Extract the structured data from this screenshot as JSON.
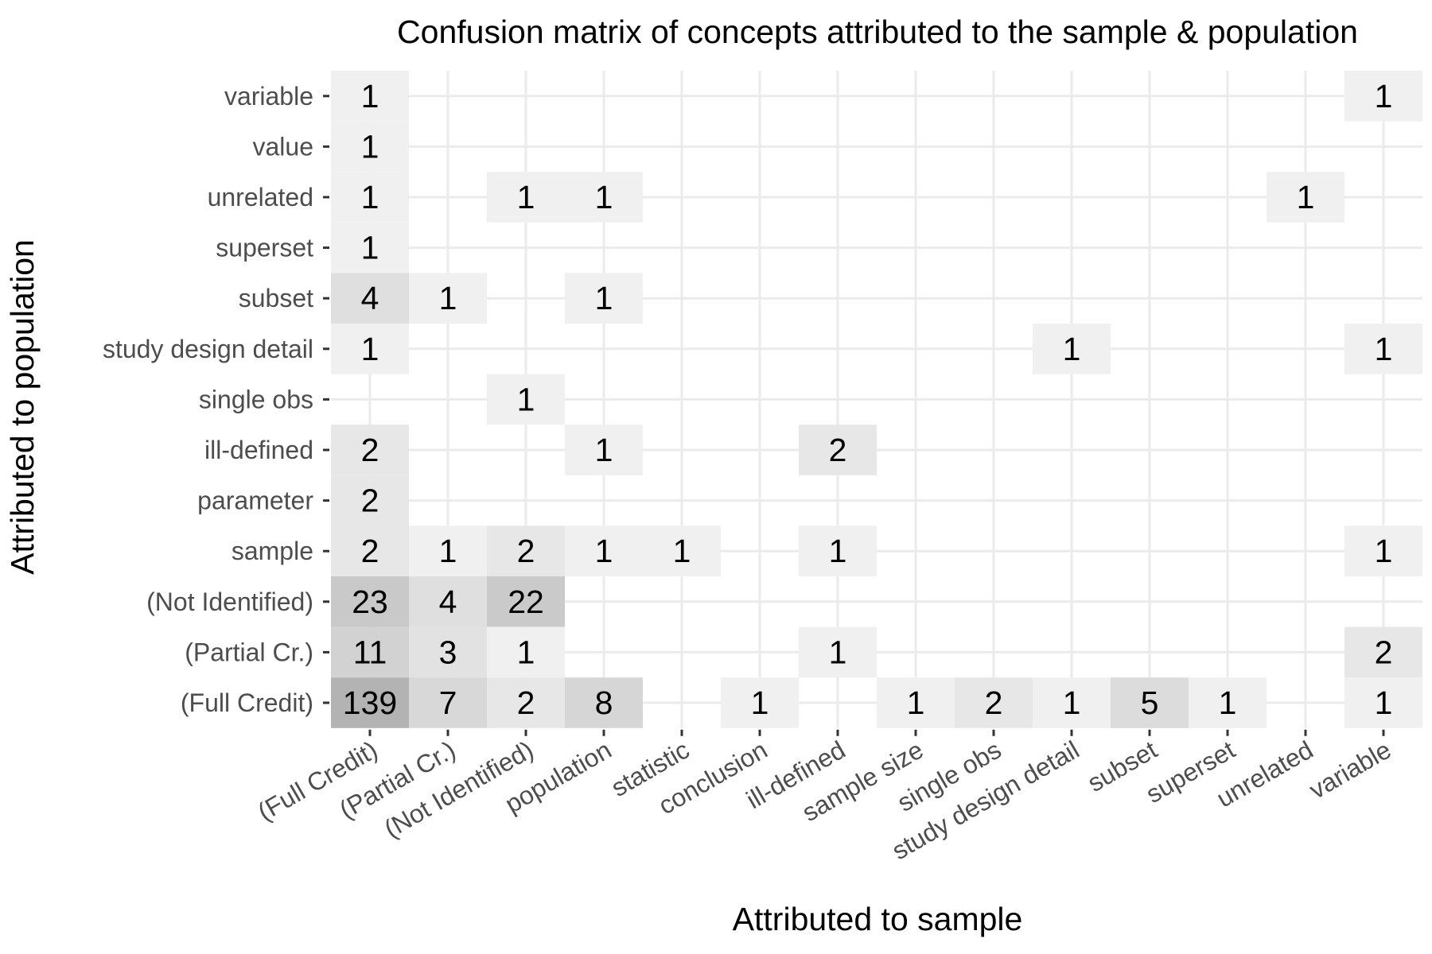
{
  "chart_data": {
    "type": "heatmap",
    "title": "Confusion matrix of concepts attributed to the sample & population",
    "xlabel": "Attributed to sample",
    "ylabel": "Attributed to population",
    "x_categories": [
      "(Full Credit)",
      "(Partial Cr.)",
      "(Not Identified)",
      "population",
      "statistic",
      "conclusion",
      "ill-defined",
      "sample size",
      "single obs",
      "study design detail",
      "subset",
      "superset",
      "unrelated",
      "variable"
    ],
    "y_categories": [
      "(Full Credit)",
      "(Partial Cr.)",
      "(Not Identified)",
      "sample",
      "parameter",
      "ill-defined",
      "single obs",
      "study design detail",
      "subset",
      "superset",
      "unrelated",
      "value",
      "variable"
    ],
    "cells": [
      {
        "x": "(Full Credit)",
        "y": "variable",
        "value": 1
      },
      {
        "x": "variable",
        "y": "variable",
        "value": 1
      },
      {
        "x": "(Full Credit)",
        "y": "value",
        "value": 1
      },
      {
        "x": "(Full Credit)",
        "y": "unrelated",
        "value": 1
      },
      {
        "x": "(Not Identified)",
        "y": "unrelated",
        "value": 1
      },
      {
        "x": "population",
        "y": "unrelated",
        "value": 1
      },
      {
        "x": "unrelated",
        "y": "unrelated",
        "value": 1
      },
      {
        "x": "(Full Credit)",
        "y": "superset",
        "value": 1
      },
      {
        "x": "(Full Credit)",
        "y": "subset",
        "value": 4
      },
      {
        "x": "(Partial Cr.)",
        "y": "subset",
        "value": 1
      },
      {
        "x": "population",
        "y": "subset",
        "value": 1
      },
      {
        "x": "(Full Credit)",
        "y": "study design detail",
        "value": 1
      },
      {
        "x": "study design detail",
        "y": "study design detail",
        "value": 1
      },
      {
        "x": "variable",
        "y": "study design detail",
        "value": 1
      },
      {
        "x": "(Not Identified)",
        "y": "single obs",
        "value": 1
      },
      {
        "x": "(Full Credit)",
        "y": "ill-defined",
        "value": 2
      },
      {
        "x": "population",
        "y": "ill-defined",
        "value": 1
      },
      {
        "x": "ill-defined",
        "y": "ill-defined",
        "value": 2
      },
      {
        "x": "(Full Credit)",
        "y": "parameter",
        "value": 2
      },
      {
        "x": "(Full Credit)",
        "y": "sample",
        "value": 2
      },
      {
        "x": "(Partial Cr.)",
        "y": "sample",
        "value": 1
      },
      {
        "x": "(Not Identified)",
        "y": "sample",
        "value": 2
      },
      {
        "x": "population",
        "y": "sample",
        "value": 1
      },
      {
        "x": "statistic",
        "y": "sample",
        "value": 1
      },
      {
        "x": "ill-defined",
        "y": "sample",
        "value": 1
      },
      {
        "x": "variable",
        "y": "sample",
        "value": 1
      },
      {
        "x": "(Full Credit)",
        "y": "(Not Identified)",
        "value": 23
      },
      {
        "x": "(Partial Cr.)",
        "y": "(Not Identified)",
        "value": 4
      },
      {
        "x": "(Not Identified)",
        "y": "(Not Identified)",
        "value": 22
      },
      {
        "x": "(Full Credit)",
        "y": "(Partial Cr.)",
        "value": 11
      },
      {
        "x": "(Partial Cr.)",
        "y": "(Partial Cr.)",
        "value": 3
      },
      {
        "x": "(Not Identified)",
        "y": "(Partial Cr.)",
        "value": 1
      },
      {
        "x": "ill-defined",
        "y": "(Partial Cr.)",
        "value": 1
      },
      {
        "x": "variable",
        "y": "(Partial Cr.)",
        "value": 2
      },
      {
        "x": "(Full Credit)",
        "y": "(Full Credit)",
        "value": 139
      },
      {
        "x": "(Partial Cr.)",
        "y": "(Full Credit)",
        "value": 7
      },
      {
        "x": "(Not Identified)",
        "y": "(Full Credit)",
        "value": 2
      },
      {
        "x": "population",
        "y": "(Full Credit)",
        "value": 8
      },
      {
        "x": "conclusion",
        "y": "(Full Credit)",
        "value": 1
      },
      {
        "x": "sample size",
        "y": "(Full Credit)",
        "value": 1
      },
      {
        "x": "single obs",
        "y": "(Full Credit)",
        "value": 2
      },
      {
        "x": "study design detail",
        "y": "(Full Credit)",
        "value": 1
      },
      {
        "x": "subset",
        "y": "(Full Credit)",
        "value": 5
      },
      {
        "x": "superset",
        "y": "(Full Credit)",
        "value": 1
      },
      {
        "x": "variable",
        "y": "(Full Credit)",
        "value": 1
      }
    ],
    "fill_scale": {
      "low": "#f0f0f0",
      "high": "#b3b3b3",
      "transform": "log"
    },
    "grid": true,
    "legend": "none",
    "colors": {
      "background": "#ffffff",
      "grid": "#ebebeb",
      "text": "#000000",
      "tick_text": "#4d4d4d",
      "tick_mark": "#333333"
    }
  }
}
